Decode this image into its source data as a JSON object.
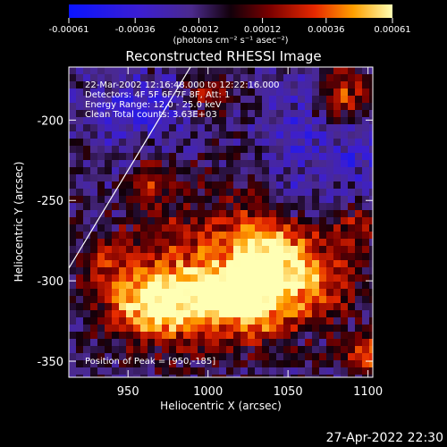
{
  "chart_data": {
    "type": "heatmap",
    "title": "Reconstructed RHESSI Image",
    "xlabel": "Heliocentric X (arcsec)",
    "ylabel": "Heliocentric Y (arcsec)",
    "xlim": [
      913,
      1103
    ],
    "ylim": [
      -360,
      -167
    ],
    "x_ticks": [
      950,
      1000,
      1050,
      1100
    ],
    "y_ticks": [
      -350,
      -300,
      -250,
      -200
    ],
    "colorbar": {
      "label": "(photons cm⁻² s⁻¹ asec⁻²)",
      "range": [
        -0.00061,
        0.00061
      ],
      "tick_values": [
        -0.00061,
        -0.00036,
        -0.00012,
        0.00012,
        0.00036,
        0.00061
      ],
      "tick_labels": [
        "-0.00061",
        "-0.00036",
        "-0.00012",
        "0.00012",
        "0.00036",
        "0.00061"
      ]
    },
    "annotations": [
      "22-Mar-2002 12:16:48.000 to 12:22:16.000",
      "Detectors: 4F 5F 6F 7F 8F, Att: 1",
      "Energy Range: 12.0 - 25.0 keV",
      "Clean     Total counts: 3.63E+03"
    ],
    "peak_label": "Position of Peak = [950,-185]",
    "colors": {
      "negative": "#1414ff",
      "zero": "#1a0010",
      "positive": "#ffff66"
    }
  },
  "footer": {
    "datestamp": "27-Apr-2022 22:30"
  }
}
